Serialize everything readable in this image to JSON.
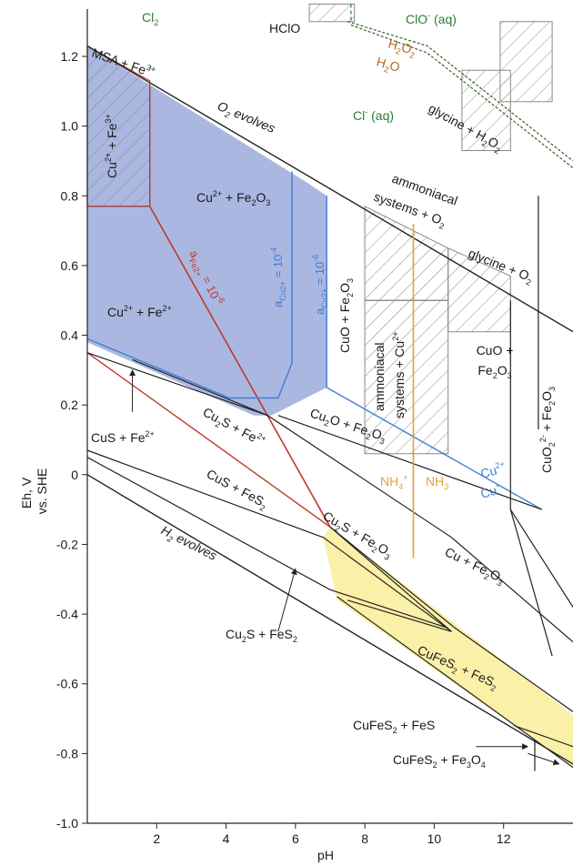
{
  "chart_data": {
    "type": "diagram",
    "xlabel": "pH",
    "ylabel_line1": "Eh, V",
    "ylabel_line2": "vs. SHE",
    "xlim": [
      0,
      14
    ],
    "ylim": [
      -1.0,
      1.35
    ],
    "x_ticks": [
      {
        "v": 2,
        "label": "2"
      },
      {
        "v": 4,
        "label": "4"
      },
      {
        "v": 6,
        "label": "6"
      },
      {
        "v": 8,
        "label": "8"
      },
      {
        "v": 10,
        "label": "10"
      },
      {
        "v": 12,
        "label": "12"
      }
    ],
    "y_ticks": [
      {
        "v": 1.2,
        "label": "1.2"
      },
      {
        "v": 1.0,
        "label": "1.0"
      },
      {
        "v": 0.8,
        "label": "0.8"
      },
      {
        "v": 0.6,
        "label": "0.6"
      },
      {
        "v": 0.4,
        "label": "0.4"
      },
      {
        "v": 0.2,
        "label": "0.2"
      },
      {
        "v": 0.0,
        "label": "0"
      },
      {
        "v": -0.2,
        "label": "-0.2"
      },
      {
        "v": -0.4,
        "label": "-0.4"
      },
      {
        "v": -0.6,
        "label": "-0.6"
      },
      {
        "v": -0.8,
        "label": "-0.8"
      },
      {
        "v": -1.0,
        "label": "-1.0"
      }
    ],
    "colors": {
      "blue_fill": "#aab7e0",
      "blue_line": "#3f7ed6",
      "yellow_fill": "#fbf0a8",
      "red_line": "#c0392b",
      "orange_line": "#e8a033",
      "green_text": "#2e7d32",
      "brown_text": "#b26b1e",
      "hatch": "#888888",
      "line": "#222222"
    },
    "labels": {
      "cl2": "Cl",
      "cl2_sub": "2",
      "hclo": "HClO",
      "clo_aq": "ClO",
      "clo_aq_sup": "-",
      "clo_aq_tail": " (aq)",
      "h2o2": "H",
      "h2o2_sub1": "2",
      "h2o2_o": "O",
      "h2o2_sub2": "2",
      "h2o": "H",
      "h2o_sub": "2",
      "h2o_o": "O",
      "cl_aq": "Cl",
      "cl_aq_sup": "-",
      "cl_aq_tail": " (aq)",
      "glycine_h2o2": "glycine + H",
      "glycine_h2o2_sub1": "2",
      "glycine_h2o2_o": "O",
      "glycine_h2o2_sub2": "2",
      "msa_fe": "MSA + Fe",
      "msa_fe_sup": "3+",
      "o2_evolves": "O",
      "o2_evolves_sub": "2",
      "o2_evolves_tail": " evolves",
      "cu_fe3": "Cu",
      "cu_fe3_sup1": "2+",
      "cu_fe3_mid": " + Fe",
      "cu_fe3_sup2": "3+",
      "cu_fe2o3": "Cu",
      "cu_fe2o3_sup": "2+",
      "cu_fe2o3_mid": " + Fe",
      "cu_fe2o3_sub1": "2",
      "cu_fe2o3_o": "O",
      "cu_fe2o3_sub2": "3",
      "ammoniacal_line1": "ammoniacal",
      "ammoniacal_line2": "systems + O",
      "ammoniacal_line2_sub": "2",
      "glycine_o2": "glycine + O",
      "glycine_o2_sub": "2",
      "a_fe": "a",
      "a_fe_sub": "Fe2+",
      "a_fe_tail": " = 10",
      "a_fe_sup": "-6",
      "a_cu4": "a",
      "a_cu4_sub": "Cu2+",
      "a_cu4_tail": " = 10",
      "a_cu4_sup": "-4",
      "a_cu6": "a",
      "a_cu6_sub": "Cu2+",
      "a_cu6_tail": " = 10",
      "a_cu6_sup": "-6",
      "cuo_fe2o3_v": "CuO + Fe",
      "cuo_fe2o3_v_sub1": "2",
      "cuo_fe2o3_v_o": "O",
      "cuo_fe2o3_v_sub2": "3",
      "cu_fe2": "Cu",
      "cu_fe2_sup1": "2+",
      "cu_fe2_mid": " + Fe",
      "cu_fe2_sup2": "2+",
      "amm_cu_line1": "ammoniacal",
      "amm_cu_line2": "systems + Cu",
      "amm_cu_line2_sup": "2+",
      "cuo_fe2o3_line1": "CuO +",
      "cuo_fe2o3_line2": "Fe",
      "cuo_fe2o3_line2_sub1": "2",
      "cuo_fe2o3_line2_o": "O",
      "cuo_fe2o3_line2_sub2": "3",
      "cuo2_fe2o3": "CuO",
      "cuo2_fe2o3_sub": "2",
      "cuo2_fe2o3_sup": "2-",
      "cuo2_fe2o3_mid": " + Fe",
      "cuo2_fe2o3_sub2": "2",
      "cuo2_fe2o3_o": "O",
      "cuo2_fe2o3_sub3": "3",
      "cus_fe2": "CuS + Fe",
      "cus_fe2_sup": "2+",
      "cu2s_fe2": "Cu",
      "cu2s_fe2_sub": "2",
      "cu2s_fe2_mid": "S + Fe",
      "cu2s_fe2_sup": "2+",
      "cu2o_fe2o3": "Cu",
      "cu2o_fe2o3_sub1": "2",
      "cu2o_fe2o3_mid": "O + Fe",
      "cu2o_fe2o3_sub2": "2",
      "cu2o_fe2o3_o": "O",
      "cu2o_fe2o3_sub3": "3",
      "cu2plus": "Cu",
      "cu2plus_sup": "2+",
      "cuplus": "Cu",
      "cuplus_sup": "+",
      "nh4": "NH",
      "nh4_sub": "4",
      "nh4_sup": "+",
      "nh3": "NH",
      "nh3_sub": "3",
      "cus_fes2": "CuS + FeS",
      "cus_fes2_sub": "2",
      "cu2s_fe2o3": "Cu",
      "cu2s_fe2o3_sub1": "2",
      "cu2s_fe2o3_mid": "S + Fe",
      "cu2s_fe2o3_sub2": "2",
      "cu2s_fe2o3_o": "O",
      "cu2s_fe2o3_sub3": "3",
      "cu_fe2o3_low": "Cu + Fe",
      "cu_fe2o3_low_sub1": "2",
      "cu_fe2o3_low_o": "O",
      "cu_fe2o3_low_sub2": "3",
      "h2_evolves": "H",
      "h2_evolves_sub": "2",
      "h2_evolves_tail": " evolves",
      "cu2s_fes2": "Cu",
      "cu2s_fes2_sub1": "2",
      "cu2s_fes2_mid": "S + FeS",
      "cu2s_fes2_sub2": "2",
      "cufes2_fes2": "CuFeS",
      "cufes2_fes2_sub1": "2",
      "cufes2_fes2_mid": " + FeS",
      "cufes2_fes2_sub2": "2",
      "cufes2_fes": "CuFeS",
      "cufes2_fes_sub": "2",
      "cufes2_fes_tail": " + FeS",
      "cufes2_fe3o4": "CuFeS",
      "cufes2_fe3o4_sub1": "2",
      "cufes2_fe3o4_mid": " + Fe",
      "cufes2_fe3o4_sub2": "3",
      "cufes2_fe3o4_o": "O",
      "cufes2_fe3o4_sub3": "4"
    }
  }
}
